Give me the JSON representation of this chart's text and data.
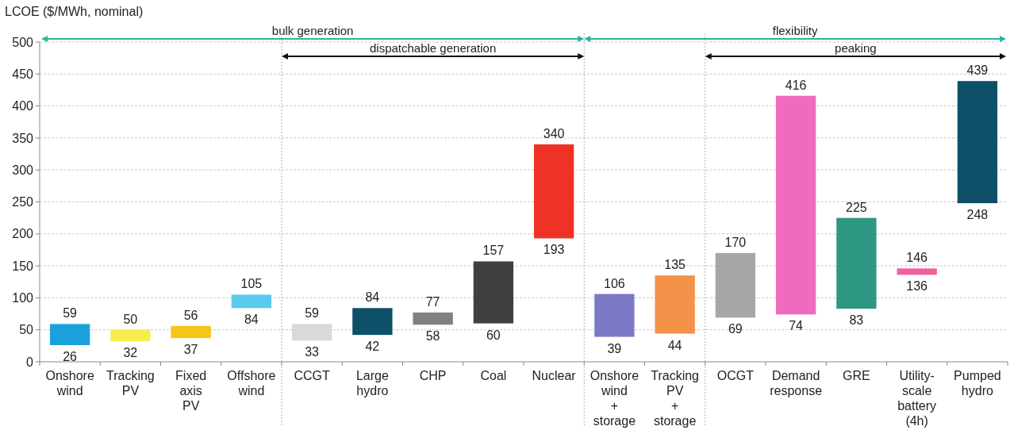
{
  "chart_data": {
    "type": "bar",
    "ylabel": "LCOE ($/MWh, nominal)",
    "categories": [
      "Onshore\nwind",
      "Tracking\nPV",
      "Fixed\naxis\nPV",
      "Offshore\nwind",
      "CCGT",
      "Large\nhydro",
      "CHP",
      "Coal",
      "Nuclear",
      "Onshore\nwind\n+\nstorage",
      "Tracking\nPV\n+\nstorage",
      "OCGT",
      "Demand\nresponse",
      "GRE",
      "Utility-\nscale\nbattery\n(4h)",
      "Pumped\nhydro"
    ],
    "base": [
      26,
      32,
      37,
      84,
      33,
      42,
      58,
      60,
      193,
      39,
      44,
      69,
      74,
      83,
      136,
      248
    ],
    "values": [
      33,
      18,
      19,
      21,
      26,
      42,
      19,
      97,
      147,
      67,
      91,
      101,
      342,
      142,
      10,
      191
    ],
    "colors": [
      "#1aa0db",
      "#f7ec4e",
      "#f5c518",
      "#5cc9ee",
      "#d9d9d9",
      "#0e5068",
      "#808080",
      "#404040",
      "#ee3326",
      "#7b78c6",
      "#f5924a",
      "#a6a6a6",
      "#f06bbf",
      "#2e9783",
      "#f0609e",
      "#0e5068"
    ],
    "ylim": [
      0,
      500
    ],
    "yticks": [
      0,
      50,
      100,
      150,
      200,
      250,
      300,
      350,
      400,
      450,
      500
    ],
    "grid": "y",
    "annotations": [
      "bulk generation",
      "dispatchable generation",
      "flexibility",
      "peaking",
      {
        "text": "59",
        "x": "Onshore\nwind",
        "y": 59
      },
      {
        "text": "26",
        "x": "Onshore\nwind",
        "y": 26
      },
      {
        "text": "50",
        "x": "Tracking\nPV",
        "y": 50
      },
      {
        "text": "32",
        "x": "Tracking\nPV",
        "y": 32
      },
      {
        "text": "56",
        "x": "Fixed\naxis\nPV",
        "y": 56
      },
      {
        "text": "37",
        "x": "Fixed\naxis\nPV",
        "y": 37
      },
      {
        "text": "105",
        "x": "Offshore\nwind",
        "y": 105
      },
      {
        "text": "84",
        "x": "Offshore\nwind",
        "y": 84
      },
      {
        "text": "59",
        "x": "CCGT",
        "y": 59
      },
      {
        "text": "33",
        "x": "CCGT",
        "y": 33
      },
      {
        "text": "84",
        "x": "Large\nhydro",
        "y": 84
      },
      {
        "text": "42",
        "x": "Large\nhydro",
        "y": 42
      },
      {
        "text": "77",
        "x": "CHP",
        "y": 77
      },
      {
        "text": "58",
        "x": "CHP",
        "y": 58
      },
      {
        "text": "157",
        "x": "Coal",
        "y": 157
      },
      {
        "text": "60",
        "x": "Coal",
        "y": 60
      },
      {
        "text": "340",
        "x": "Nuclear",
        "y": 340
      },
      {
        "text": "193",
        "x": "Nuclear",
        "y": 193
      },
      {
        "text": "106",
        "x": "Onshore\nwind\n+\nstorage",
        "y": 106
      },
      {
        "text": "39",
        "x": "Onshore\nwind\n+\nstorage",
        "y": 39
      },
      {
        "text": "135",
        "x": "Tracking\nPV\n+\nstorage",
        "y": 135
      },
      {
        "text": "44",
        "x": "Tracking\nPV\n+\nstorage",
        "y": 44
      },
      {
        "text": "170",
        "x": "OCGT",
        "y": 170
      },
      {
        "text": "69",
        "x": "OCGT",
        "y": 69
      },
      {
        "text": "416",
        "x": "Demand\nresponse",
        "y": 416
      },
      {
        "text": "74",
        "x": "Demand\nresponse",
        "y": 74
      },
      {
        "text": "225",
        "x": "GRE",
        "y": 225
      },
      {
        "text": "83",
        "x": "GRE",
        "y": 83
      },
      {
        "text": "146",
        "x": "Utility-\nscale\nbattery\n(4h)",
        "y": 146
      },
      {
        "text": "136",
        "x": "Utility-\nscale\nbattery\n(4h)",
        "y": 136
      },
      {
        "text": "439",
        "x": "Pumped\nhydro",
        "y": 439
      },
      {
        "text": "248",
        "x": "Pumped\nhydro",
        "y": 248
      }
    ]
  }
}
